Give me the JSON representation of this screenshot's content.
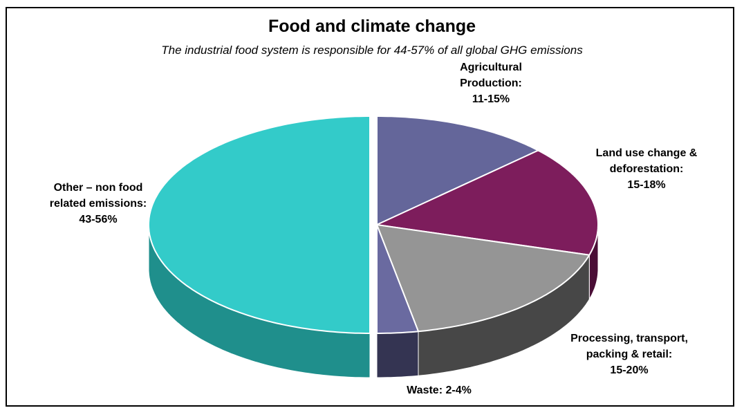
{
  "chart_data": {
    "type": "pie",
    "title": "Food and climate change",
    "subtitle": "The industrial food system is responsible for 44-57%  of all global GHG emissions",
    "slices": [
      {
        "name": "Agricultural Production",
        "label_lines": [
          "Agricultural",
          "Production:",
          "11-15%"
        ],
        "range": "11-15%",
        "value": 13,
        "color": "#64669a",
        "side_color": "#3a3c5e"
      },
      {
        "name": "Land use change & deforestation",
        "label_lines": [
          "Land use change &",
          "deforestation:",
          "15-18%"
        ],
        "range": "15-18%",
        "value": 16.5,
        "color": "#7d1d5c",
        "side_color": "#4a0e36"
      },
      {
        "name": "Processing, transport, packing & retail",
        "label_lines": [
          "Processing, transport,",
          "packing & retail:",
          "15-20%"
        ],
        "range": "15-20%",
        "value": 17.5,
        "color": "#959595",
        "side_color": "#474747"
      },
      {
        "name": "Waste",
        "label_lines": [
          "Waste: 2-4%"
        ],
        "range": "2-4%",
        "value": 3,
        "color": "#6a6aa0",
        "side_color": "#343452"
      },
      {
        "name": "Other – non food related emissions",
        "label_lines": [
          "Other – non food",
          "related emissions:",
          "43-56%"
        ],
        "range": "43-56%",
        "value": 50,
        "color": "#33cbc9",
        "side_color": "#1f8f8c",
        "exploded": true
      }
    ],
    "legend": "none",
    "style": "3d-pie"
  }
}
